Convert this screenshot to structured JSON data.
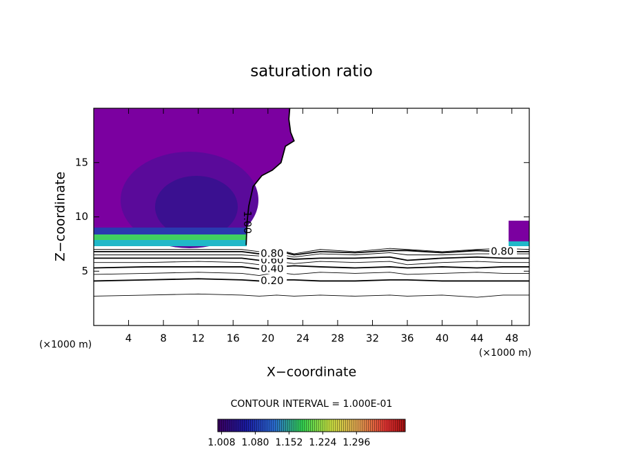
{
  "chart_data": {
    "type": "contour",
    "title": "saturation ratio",
    "x_label": "X−coordinate",
    "y_label": "Z−coordinate",
    "x_unit_left": "(×1000 m)",
    "x_unit_right": "(×1000 m)",
    "contour_interval_text": "CONTOUR INTERVAL = 1.000E-01",
    "xlim": [
      0,
      50
    ],
    "xticks": [
      4,
      8,
      12,
      16,
      20,
      24,
      28,
      32,
      36,
      40,
      44,
      48
    ],
    "ylim": [
      0,
      20
    ],
    "yticks": [
      5,
      10,
      15
    ],
    "fill_color": "#7b00a0",
    "contours": [
      {
        "level": 0.1,
        "x": [
          0,
          6,
          12,
          17,
          19,
          21,
          23,
          26,
          30,
          34,
          36,
          40,
          44,
          47,
          50
        ],
        "y": [
          2.7,
          2.8,
          2.9,
          2.8,
          2.7,
          2.8,
          2.7,
          2.8,
          2.7,
          2.8,
          2.7,
          2.8,
          2.6,
          2.8,
          2.8
        ]
      },
      {
        "level": 0.2,
        "label": "0.20",
        "x": [
          0,
          6,
          12,
          17,
          19,
          21,
          23,
          26,
          30,
          34,
          36,
          40,
          44,
          47,
          50
        ],
        "y": [
          4.1,
          4.2,
          4.3,
          4.2,
          4.1,
          4.2,
          4.2,
          4.1,
          4.1,
          4.2,
          4.2,
          4.1,
          4.1,
          4.1,
          4.1
        ]
      },
      {
        "level": 0.3,
        "x": [
          0,
          6,
          12,
          17,
          19,
          21,
          23,
          26,
          30,
          34,
          36,
          40,
          44,
          47,
          50
        ],
        "y": [
          4.7,
          4.8,
          4.9,
          4.8,
          4.6,
          4.9,
          4.7,
          4.9,
          4.8,
          4.9,
          4.7,
          4.8,
          4.9,
          4.8,
          4.8
        ]
      },
      {
        "level": 0.4,
        "label": "0.40",
        "x": [
          0,
          6,
          12,
          17,
          19,
          21,
          23,
          26,
          30,
          34,
          36,
          40,
          44,
          47,
          50
        ],
        "y": [
          5.3,
          5.4,
          5.4,
          5.4,
          5.2,
          5.4,
          5.5,
          5.4,
          5.3,
          5.4,
          5.3,
          5.4,
          5.3,
          5.4,
          5.4
        ]
      },
      {
        "level": 0.5,
        "x": [
          0,
          6,
          12,
          17,
          19,
          21,
          23,
          26,
          30,
          34,
          36,
          40,
          44,
          47,
          50
        ],
        "y": [
          5.8,
          5.8,
          5.9,
          5.8,
          5.6,
          5.9,
          5.7,
          5.9,
          5.8,
          5.9,
          5.6,
          5.8,
          5.9,
          5.8,
          5.8
        ]
      },
      {
        "level": 0.6,
        "label": "0.60",
        "x": [
          0,
          6,
          12,
          17,
          19,
          21,
          23,
          26,
          30,
          34,
          36,
          40,
          44,
          47,
          50
        ],
        "y": [
          6.2,
          6.2,
          6.2,
          6.2,
          6.0,
          6.3,
          6.1,
          6.2,
          6.2,
          6.3,
          6.0,
          6.2,
          6.3,
          6.2,
          6.2
        ]
      },
      {
        "level": 0.7,
        "x": [
          0,
          6,
          12,
          17,
          19,
          21,
          23,
          26,
          30,
          34,
          36,
          40,
          44,
          47,
          50
        ],
        "y": [
          6.5,
          6.5,
          6.5,
          6.5,
          6.4,
          6.6,
          6.3,
          6.6,
          6.5,
          6.7,
          6.5,
          6.5,
          6.6,
          6.6,
          6.6
        ]
      },
      {
        "level": 0.8,
        "label": "0.80",
        "x": [
          0,
          6,
          12,
          17,
          19,
          21,
          23,
          26,
          30,
          34,
          36,
          40,
          44,
          47,
          50
        ],
        "y": [
          6.8,
          6.8,
          6.8,
          6.8,
          6.6,
          6.9,
          6.5,
          6.8,
          6.7,
          6.9,
          6.9,
          6.7,
          6.9,
          6.8,
          6.8
        ]
      },
      {
        "level": 0.9,
        "x": [
          0,
          6,
          12,
          17,
          19,
          21,
          23,
          26,
          30,
          34,
          36,
          40,
          44,
          47,
          50
        ],
        "y": [
          7.0,
          7.0,
          7.0,
          7.0,
          6.8,
          7.0,
          6.6,
          7.0,
          6.8,
          7.1,
          7.0,
          6.8,
          7.0,
          7.1,
          7.0
        ]
      },
      {
        "level": 1.0,
        "label": "1.00",
        "x": [
          17.5,
          17.6,
          17.8,
          18.3,
          19.3,
          20.5,
          21.5,
          22.0,
          23.0,
          22.6,
          22.4,
          22.5
        ],
        "y": [
          7.4,
          9.5,
          11.0,
          12.8,
          13.8,
          14.3,
          15.0,
          16.5,
          17.0,
          17.8,
          19.0,
          20.0
        ]
      }
    ],
    "colorbar": {
      "clim": [
        1.0,
        1.4
      ],
      "ticks": [
        1.008,
        {
          "value": 1.08,
          "label": "1.080"
        },
        1.152,
        1.224,
        1.296
      ]
    }
  }
}
